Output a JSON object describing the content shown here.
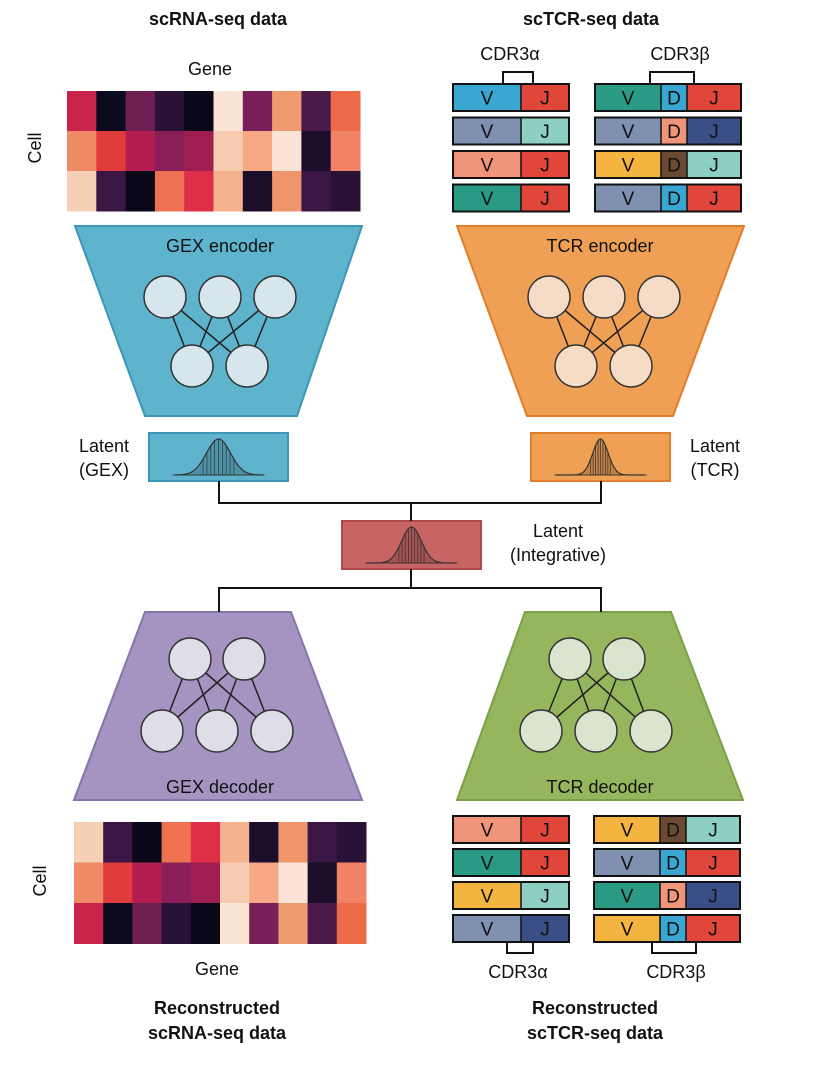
{
  "titles": {
    "scrna": "scRNA-seq data",
    "sctcr": "scTCR-seq data",
    "recon_scrna_line1": "Reconstructed",
    "recon_scrna_line2": "scRNA-seq data",
    "recon_sctcr_line1": "Reconstructed",
    "recon_sctcr_line2": "scTCR-seq data"
  },
  "axis": {
    "gene_top": "Gene",
    "cell_top": "Cell",
    "gene_bottom": "Gene",
    "cell_bottom": "Cell"
  },
  "cdr": {
    "alpha_top": "CDR3α",
    "beta_top": "CDR3β",
    "alpha_bottom": "CDR3α",
    "beta_bottom": "CDR3β"
  },
  "modules": {
    "gex_encoder": "GEX encoder",
    "tcr_encoder": "TCR encoder",
    "gex_decoder": "GEX decoder",
    "tcr_decoder": "TCR decoder"
  },
  "latent": {
    "gex_line1": "Latent",
    "gex_line2": "(GEX)",
    "tcr_line1": "Latent",
    "tcr_line2": "(TCR)",
    "int_line1": "Latent",
    "int_line2": "(Integrative)"
  },
  "colors": {
    "gex_encoder": "#5fb4cd",
    "tcr_encoder": "#f0a055",
    "gex_decoder": "#a594c2",
    "tcr_decoder": "#96b65e",
    "latent_gex": "#5fb4cd",
    "latent_tcr": "#f0a055",
    "latent_int": "#c86464",
    "node_fill": "#dfe7ec"
  },
  "gene_segments": {
    "V": "V",
    "D": "D",
    "J": "J"
  },
  "heatmap_top": [
    [
      "#c8234b",
      "#0c0a1e",
      "#6e1e50",
      "#2a1236",
      "#0a0818",
      "#fae4d4",
      "#7a2058",
      "#f09a70",
      "#4a1a48",
      "#ec6a48"
    ],
    [
      "#ee8a66",
      "#e03c3c",
      "#b21c50",
      "#8a1e58",
      "#9e1e52",
      "#f6cbb0",
      "#f6a784",
      "#fbe4d6",
      "#1c0e2a",
      "#f18266"
    ],
    [
      "#f6d0b4",
      "#3a1644",
      "#0a0818",
      "#ee7252",
      "#dd3046",
      "#f6b28e",
      "#1c0e2a",
      "#f0946c",
      "#3a1644",
      "#2a1236"
    ]
  ],
  "heatmap_bottom": [
    [
      "#f6d0b4",
      "#3a1644",
      "#0a0818",
      "#ee7252",
      "#dd3046",
      "#f6b28e",
      "#1c0e2a",
      "#f0946c",
      "#3a1644",
      "#2a1236"
    ],
    [
      "#ee8a66",
      "#e03c3c",
      "#b21c50",
      "#8a1e58",
      "#9e1e52",
      "#f6cbb0",
      "#f6a784",
      "#fbe4d6",
      "#1c0e2a",
      "#f18266"
    ],
    [
      "#c8234b",
      "#0c0a1e",
      "#6e1e50",
      "#2a1236",
      "#0a0818",
      "#fae4d4",
      "#7a2058",
      "#f09a70",
      "#4a1a48",
      "#ec6a48"
    ]
  ],
  "tcr_top": {
    "alpha": [
      [
        "#3aa6d2",
        "#e0463a"
      ],
      [
        "#8090b0",
        "#8ecfc4"
      ],
      [
        "#f0957a",
        "#e0463a"
      ],
      [
        "#2a9a84",
        "#e0463a"
      ]
    ],
    "beta": [
      [
        "#2a9a84",
        "#3aa6d2",
        "#e0463a"
      ],
      [
        "#8090b0",
        "#f0957a",
        "#3a4f86"
      ],
      [
        "#f4b440",
        "#6a4a32",
        "#8ecfc4"
      ],
      [
        "#8090b0",
        "#3aa6d2",
        "#e0463a"
      ]
    ]
  },
  "tcr_bottom": {
    "alpha": [
      [
        "#f0957a",
        "#e0463a"
      ],
      [
        "#2a9a84",
        "#e0463a"
      ],
      [
        "#f4b440",
        "#8ecfc4"
      ],
      [
        "#8090b0",
        "#3a4f86"
      ]
    ],
    "beta": [
      [
        "#f4b440",
        "#6a4a32",
        "#8ecfc4"
      ],
      [
        "#8090b0",
        "#3aa6d2",
        "#e0463a"
      ],
      [
        "#2a9a84",
        "#f0957a",
        "#3a4f86"
      ],
      [
        "#f4b440",
        "#3aa6d2",
        "#e0463a"
      ]
    ]
  }
}
